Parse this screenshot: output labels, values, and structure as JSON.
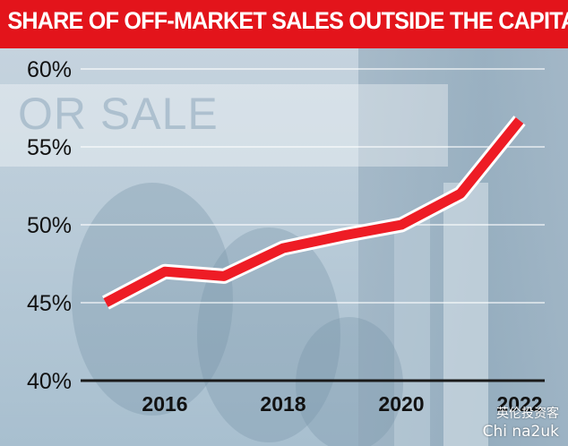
{
  "title": "SHARE OF OFF-MARKET SALES OUTSIDE THE CAPITAL",
  "background_sign_text": "OR SALE",
  "watermark": {
    "line1": "英伦投资客",
    "line2": "Chi na2uk"
  },
  "colors": {
    "title_bg": "#e3141b",
    "line": "#ee1c25",
    "line_outline": "#ffffff",
    "axis": "#1a1a1a"
  },
  "chart_data": {
    "type": "line",
    "title": "SHARE OF OFF-MARKET SALES OUTSIDE THE CAPITAL",
    "xlabel": "",
    "ylabel": "",
    "x": [
      2015,
      2016,
      2017,
      2018,
      2019,
      2020,
      2021,
      2022
    ],
    "series": [
      {
        "values": [
          45.0,
          47.0,
          46.7,
          48.5,
          49.3,
          50.0,
          52.0,
          56.7
        ]
      }
    ],
    "ylim": [
      40,
      60
    ],
    "xlim": [
      2015,
      2022
    ],
    "y_ticks": [
      "40%",
      "45%",
      "50%",
      "55%",
      "60%"
    ],
    "y_tick_values": [
      40,
      45,
      50,
      55,
      60
    ],
    "x_ticks": [
      "2016",
      "2018",
      "2020",
      "2022"
    ],
    "x_tick_values": [
      2016,
      2018,
      2020,
      2022
    ],
    "grid": true,
    "legend": "none"
  }
}
